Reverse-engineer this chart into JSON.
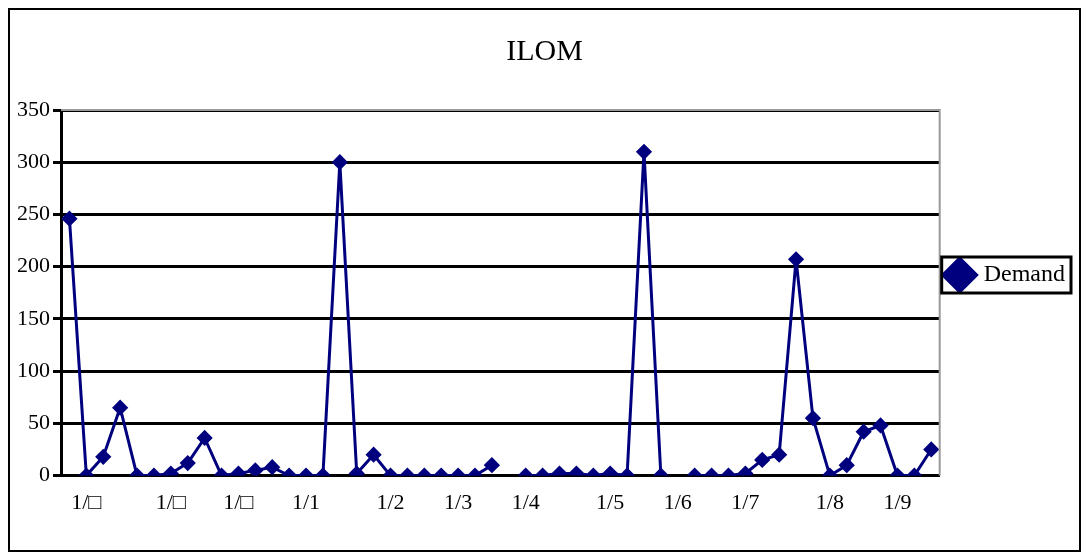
{
  "chart_data": {
    "type": "line",
    "title": "ILOM",
    "categories": [
      null,
      "1/□",
      null,
      null,
      null,
      null,
      "1/□",
      null,
      null,
      null,
      "1/□",
      null,
      null,
      null,
      "1/1",
      null,
      null,
      null,
      null,
      "1/2",
      null,
      null,
      null,
      "1/3",
      null,
      null,
      null,
      "1/4",
      null,
      null,
      null,
      null,
      "1/5",
      null,
      null,
      null,
      "1/6",
      null,
      null,
      null,
      "1/7",
      null,
      null,
      null,
      null,
      "1/8",
      null,
      null,
      null,
      "1/9",
      null,
      null
    ],
    "series": [
      {
        "name": "Demand",
        "color": "#00007f",
        "values": [
          246,
          0,
          18,
          65,
          0,
          0,
          2,
          12,
          36,
          0,
          2,
          5,
          8,
          0,
          0,
          0,
          300,
          2,
          20,
          0,
          0,
          0,
          0,
          0,
          0,
          10,
          null,
          0,
          0,
          2,
          2,
          0,
          2,
          0,
          310,
          0,
          null,
          0,
          0,
          0,
          2,
          15,
          20,
          207,
          55,
          0,
          10,
          42,
          48,
          0,
          0,
          25
        ]
      }
    ],
    "ylim": [
      0,
      350
    ],
    "yticks": [
      0,
      50,
      100,
      150,
      200,
      250,
      300,
      350
    ],
    "grid": "y",
    "legend": "right",
    "marker": "diamond",
    "line_style": "solid"
  }
}
